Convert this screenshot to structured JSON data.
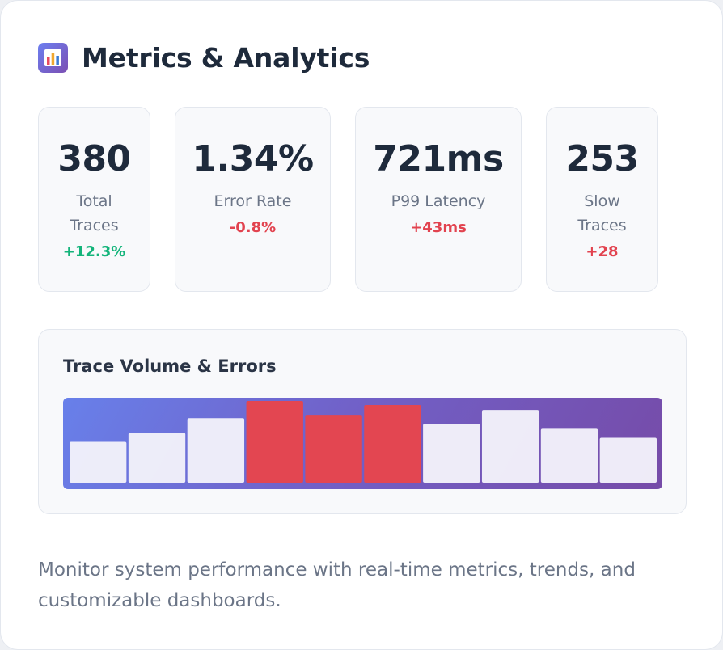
{
  "header": {
    "title": "Metrics & Analytics",
    "icon": "bar-chart-icon"
  },
  "stats": [
    {
      "value": "380",
      "label": "Total Traces",
      "change": "+12.3%",
      "trend": "positive"
    },
    {
      "value": "1.34%",
      "label": "Error Rate",
      "change": "-0.8%",
      "trend": "negative"
    },
    {
      "value": "721ms",
      "label": "P99 Latency",
      "change": "+43ms",
      "trend": "negative"
    },
    {
      "value": "253",
      "label": "Slow Traces",
      "change": "+28",
      "trend": "negative"
    }
  ],
  "chart": {
    "title": "Trace Volume & Errors",
    "colors": {
      "background_start": "#6880ea",
      "background_end": "#764ba8",
      "normal_bar": "#f2f1fa",
      "error_bar": "#e34651"
    }
  },
  "chart_data": {
    "type": "bar",
    "title": "Trace Volume & Errors",
    "xlabel": "",
    "ylabel": "",
    "ylim": [
      0,
      100
    ],
    "values": [
      50,
      61,
      79,
      100,
      83,
      95,
      72,
      89,
      66,
      55
    ],
    "error": [
      false,
      false,
      false,
      true,
      true,
      true,
      false,
      false,
      false,
      false
    ]
  },
  "description": "Monitor system performance with real-time metrics, trends, and customizable dashboards."
}
